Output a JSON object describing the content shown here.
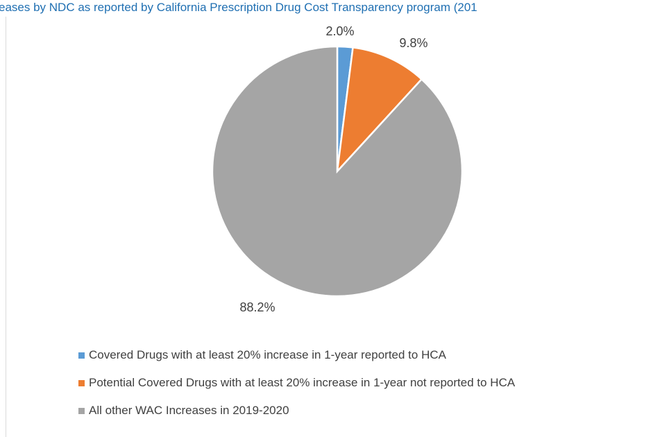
{
  "title": "eases by NDC as reported by California Prescription Drug Cost Transparency program (201",
  "chart_data": {
    "type": "pie",
    "title": "eases by NDC as reported by California Prescription Drug Cost Transparency program (201",
    "legend_position": "bottom",
    "slices": [
      {
        "label": "Covered Drugs with at least 20% increase in 1-year reported to HCA",
        "value": 2.0,
        "display": "2.0%",
        "color": "#5b9bd5"
      },
      {
        "label": "Potential Covered Drugs with at least 20% increase in 1-year not reported to HCA",
        "value": 9.8,
        "display": "9.8%",
        "color": "#ed7d31"
      },
      {
        "label": "All other WAC Increases in 2019-2020",
        "value": 88.2,
        "display": "88.2%",
        "color": "#a5a5a5"
      }
    ]
  }
}
